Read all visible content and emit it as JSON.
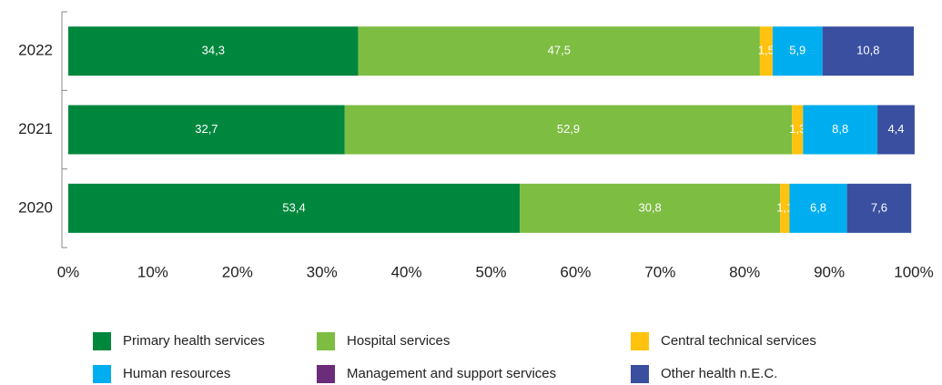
{
  "chart_data": {
    "type": "stacked-bar-horizontal",
    "categories": [
      "2022",
      "2021",
      "2020"
    ],
    "series": [
      {
        "name": "Primary health services",
        "color": "#00873e",
        "values": [
          34.3,
          32.7,
          53.4
        ],
        "value_labels": [
          "34,3",
          "32,7",
          "53,4"
        ]
      },
      {
        "name": "Hospital services",
        "color": "#7dbd42",
        "values": [
          47.5,
          52.9,
          30.8
        ],
        "value_labels": [
          "47,5",
          "52,9",
          "30,8"
        ]
      },
      {
        "name": "Central technical services",
        "color": "#ffc20e",
        "values": [
          1.5,
          1.3,
          1.1
        ],
        "value_labels": [
          "1,5",
          "1,3",
          "1,1"
        ]
      },
      {
        "name": "Human resources",
        "color": "#00aeef",
        "values": [
          5.9,
          8.8,
          6.8
        ],
        "value_labels": [
          "5,9",
          "8,8",
          "6,8"
        ]
      },
      {
        "name": "Management and support services",
        "color": "#6b2c7a",
        "values": [
          0,
          0,
          0
        ]
      },
      {
        "name": "Other health n.E.C.",
        "color": "#3a4fa0",
        "values": [
          10.8,
          4.4,
          7.6
        ],
        "value_labels": [
          "10,8",
          "4,4",
          "7,6"
        ]
      }
    ],
    "xlim": [
      0,
      100
    ],
    "xticks": [
      {
        "value": 0,
        "label": "0%"
      },
      {
        "value": 10,
        "label": "10%"
      },
      {
        "value": 20,
        "label": "20%"
      },
      {
        "value": 30,
        "label": "30%"
      },
      {
        "value": 40,
        "label": "40%"
      },
      {
        "value": 50,
        "label": "50%"
      },
      {
        "value": 60,
        "label": "60%"
      },
      {
        "value": 70,
        "label": "70%"
      },
      {
        "value": 80,
        "label": "80%"
      },
      {
        "value": 90,
        "label": "90%"
      },
      {
        "value": 100,
        "label": "100%"
      }
    ]
  }
}
